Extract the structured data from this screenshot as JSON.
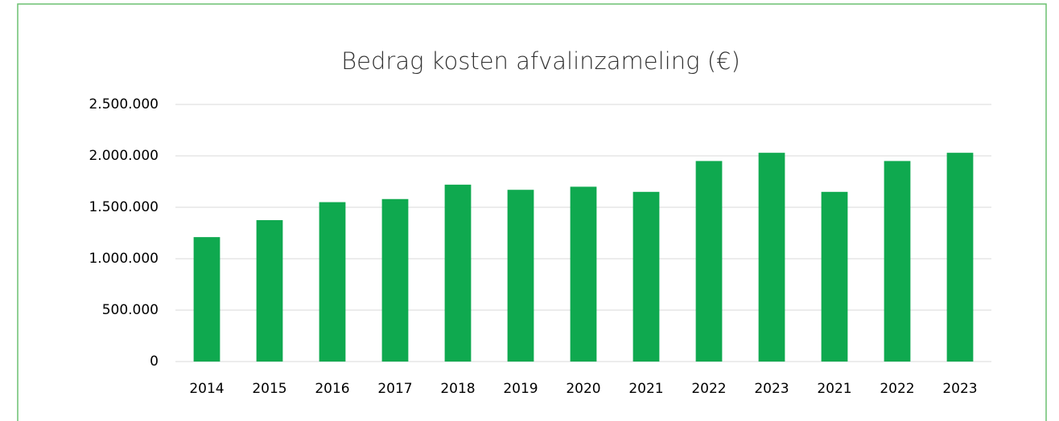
{
  "chart_data": {
    "type": "bar",
    "title": "Bedrag kosten afvalinzameling (€)",
    "categories": [
      "2014",
      "2015",
      "2016",
      "2017",
      "2018",
      "2019",
      "2020",
      "2021",
      "2022",
      "2023",
      "2021",
      "2022",
      "2023"
    ],
    "values": [
      1210000,
      1375000,
      1550000,
      1580000,
      1720000,
      1670000,
      1700000,
      1650000,
      1950000,
      2030000,
      1650000,
      1950000,
      2030000
    ],
    "color": "#0fa94f",
    "ylim": [
      0,
      2500000
    ],
    "yticks": [
      0,
      {
        "value": 500000,
        "label": "500.000"
      },
      {
        "value": 1000000,
        "label": "1.000.000"
      },
      {
        "value": 1500000,
        "label": "1.500.000"
      },
      {
        "value": 2000000,
        "label": "2.000.000"
      },
      {
        "value": 2500000,
        "label": "2.500.000"
      }
    ],
    "grid": true
  }
}
